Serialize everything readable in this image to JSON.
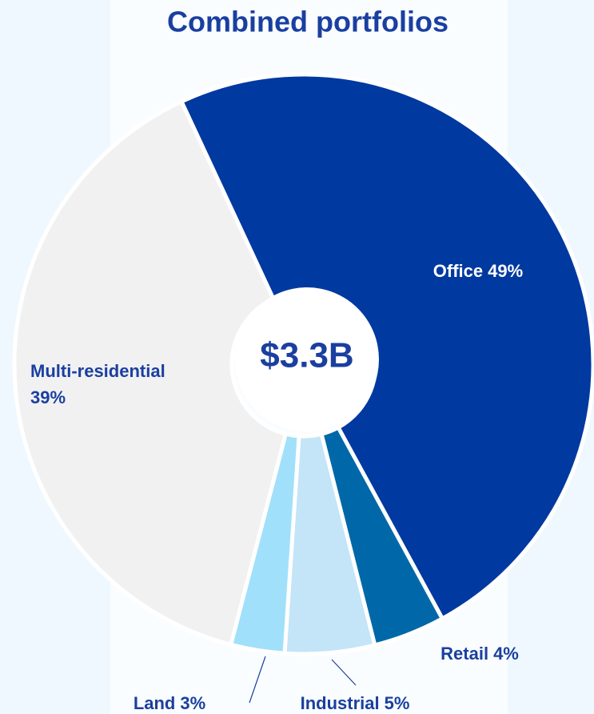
{
  "chart_data": {
    "type": "donut",
    "title": "Combined portfolios",
    "center_label": "$3.3B",
    "categories": [
      "Office",
      "Retail",
      "Industrial",
      "Land",
      "Multi-residential"
    ],
    "values": [
      49,
      4,
      5,
      3,
      39
    ],
    "value_labels": [
      "49%",
      "4%",
      "5%",
      "3%",
      "39%"
    ],
    "colors": [
      "#0039a0",
      "#0068a8",
      "#c4e4f8",
      "#a0e0fa",
      "#f1f1f1"
    ]
  }
}
